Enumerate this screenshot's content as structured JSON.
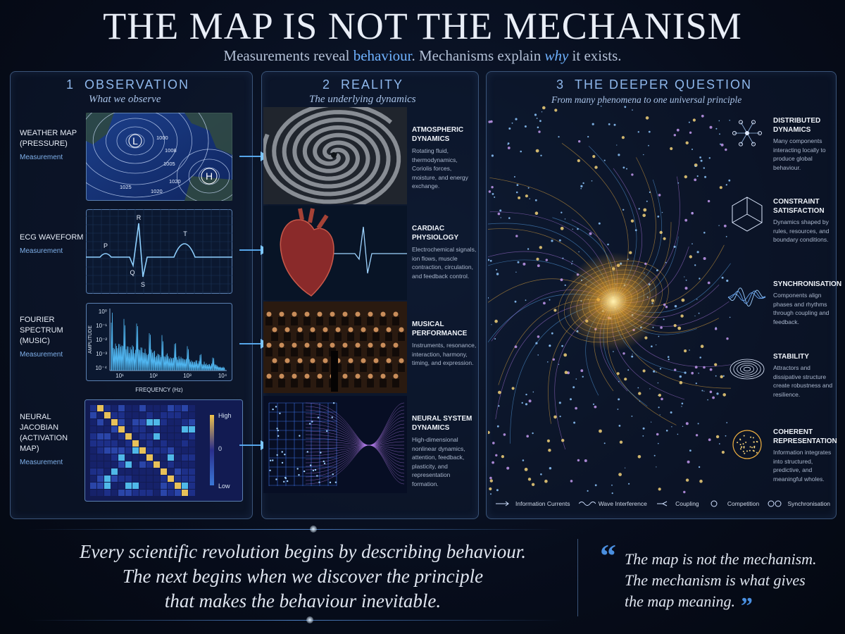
{
  "title": "THE MAP IS NOT THE MECHANISM",
  "subtitle": {
    "before": "Measurements reveal ",
    "highlight": "behaviour",
    "middle": ". Mechanisms explain ",
    "emphasis": "why",
    "after": " it exists."
  },
  "observation": {
    "number": "1",
    "title": "OBSERVATION",
    "subtitle": "What we observe",
    "items": [
      {
        "label": "WEATHER MAP (PRESSURE)",
        "note": "Measurement"
      },
      {
        "label": "ECG WAVEFORM",
        "note": "Measurement"
      },
      {
        "label": "FOURIER SPECTRUM (MUSIC)",
        "note": "Measurement"
      },
      {
        "label": "NEURAL JACOBIAN (ACTIVATION MAP)",
        "note": "Measurement"
      }
    ]
  },
  "weather_map": {
    "low": "L",
    "high": "H",
    "isobars": [
      "1000",
      "1008",
      "1005",
      "1020",
      "1025",
      "1020"
    ]
  },
  "ecg": {
    "waves": [
      "P",
      "R",
      "Q",
      "S",
      "T"
    ]
  },
  "spectrum": {
    "y_label": "AMPLITUDE",
    "x_label": "FREQUENCY (Hz)",
    "yticks": [
      "10⁰",
      "10⁻¹",
      "10⁻²",
      "10⁻³",
      "10⁻⁴"
    ],
    "xticks": [
      "10¹",
      "10²",
      "10³",
      "10⁴"
    ]
  },
  "jacobian": {
    "legend": [
      "High",
      "0",
      "Low"
    ]
  },
  "reality": {
    "number": "2",
    "title": "REALITY",
    "subtitle": "The underlying dynamics",
    "items": [
      {
        "title": "ATMOSPHERIC DYNAMICS",
        "text": "Rotating fluid, thermodynamics, Coriolis forces, moisture, and energy exchange."
      },
      {
        "title": "CARDIAC PHYSIOLOGY",
        "text": "Electrochemical signals, ion flows, muscle contraction, circulation, and feedback control."
      },
      {
        "title": "MUSICAL PERFORMANCE",
        "text": "Instruments, resonance, interaction, harmony, timing, and expression."
      },
      {
        "title": "NEURAL SYSTEM DYNAMICS",
        "text": "High-dimensional nonlinear dynamics, attention, feedback, plasticity, and representation formation."
      }
    ]
  },
  "deeper": {
    "number": "3",
    "title": "THE DEEPER QUESTION",
    "subtitle": "From many phenomena to one universal principle",
    "items": [
      {
        "title": "DISTRIBUTED DYNAMICS",
        "text": "Many components interacting locally to produce global behaviour."
      },
      {
        "title": "CONSTRAINT SATISFACTION",
        "text": "Dynamics shaped by rules, resources, and boundary conditions."
      },
      {
        "title": "SYNCHRONISATION",
        "text": "Components align phases and rhythms through coupling and feedback."
      },
      {
        "title": "STABILITY",
        "text": "Attractors and dissipative structure create robustness and resilience."
      },
      {
        "title": "COHERENT REPRESENTATION",
        "text": "Information integrates into structured, predictive, and meaningful wholes."
      }
    ],
    "legend": [
      "Information Currents",
      "Wave Interference",
      "Coupling",
      "Competition",
      "Synchronisation"
    ]
  },
  "footer": {
    "statement": [
      "Every scientific revolution begins by describing behaviour.",
      "The next begins when we discover the principle",
      "that makes the behaviour inevitable."
    ],
    "open_mark": "“",
    "close_mark": "”",
    "quote": [
      "The map is not the mechanism.",
      "The mechanism is what gives",
      "the map meaning."
    ]
  }
}
